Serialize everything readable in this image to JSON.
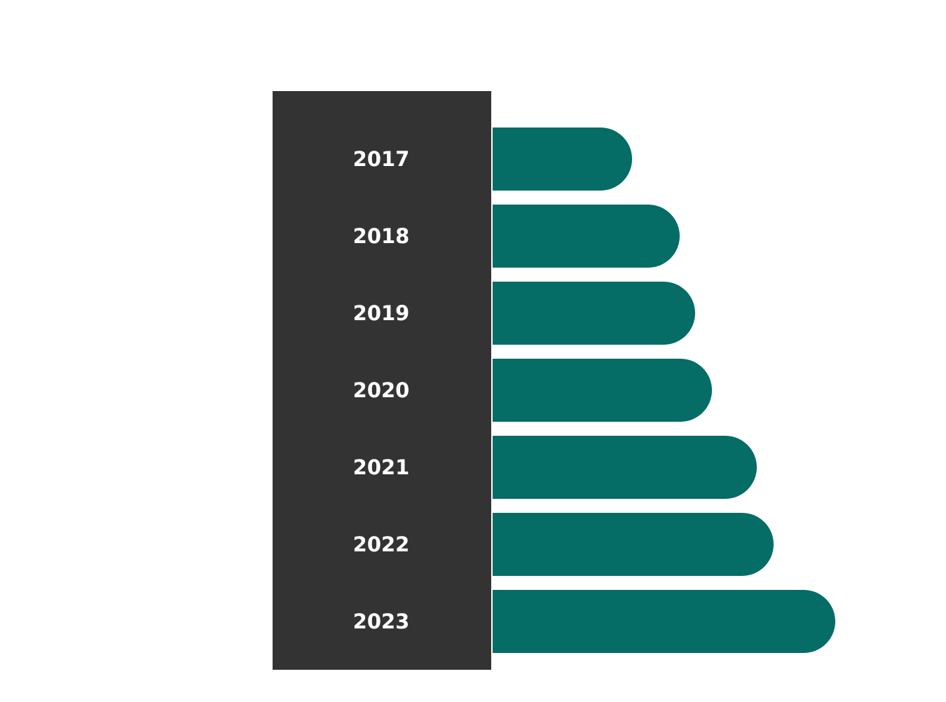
{
  "chart_data": {
    "type": "bar",
    "orientation": "horizontal",
    "categories": [
      "2017",
      "2018",
      "2019",
      "2020",
      "2021",
      "2022",
      "2023"
    ],
    "values": [
      199,
      267,
      289,
      313,
      377,
      401,
      489
    ],
    "color": "#056c66"
  }
}
